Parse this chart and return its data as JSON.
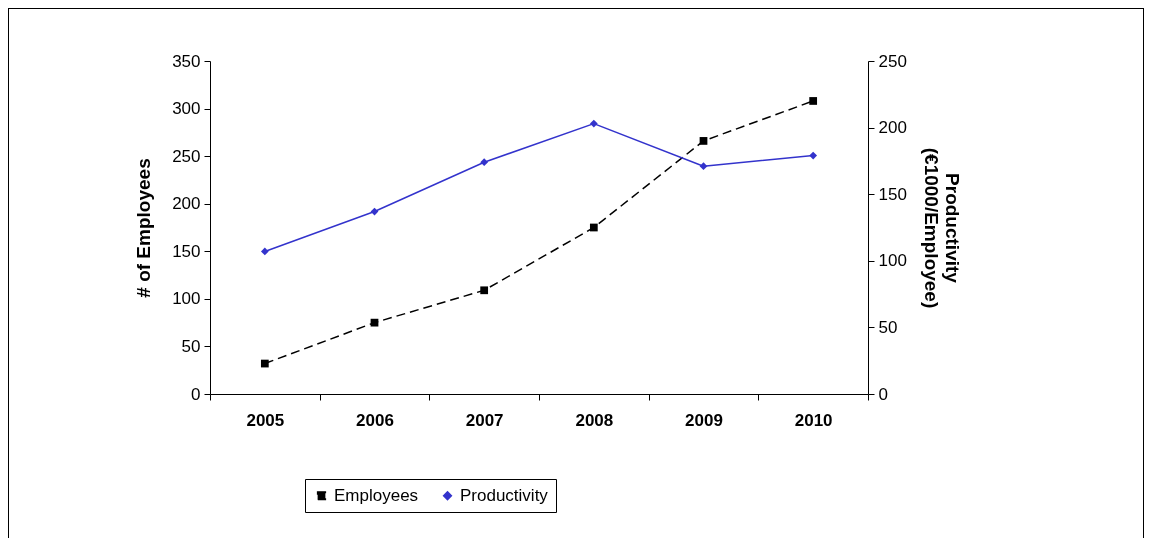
{
  "chart_data": {
    "type": "line",
    "categories": [
      "2005",
      "2006",
      "2007",
      "2008",
      "2009",
      "2010"
    ],
    "ylabel": "# of Employees",
    "y2label": "Productivity (€1000/Employee)",
    "ylim": [
      0,
      350
    ],
    "yticks": [
      0,
      50,
      100,
      150,
      200,
      250,
      300,
      350
    ],
    "y2lim": [
      0,
      250
    ],
    "y2ticks": [
      0,
      50,
      100,
      150,
      200,
      250
    ],
    "series": [
      {
        "name": "Employees",
        "color": "#000000",
        "marker": "square",
        "line_style": "dashed",
        "values": [
          32,
          75,
          109,
          175,
          266,
          308
        ]
      },
      {
        "name": "Productivity",
        "color": "#3333cc",
        "marker": "diamond",
        "line_style": "solid",
        "axis": "y2",
        "values": [
          107,
          137,
          174,
          203,
          171,
          179
        ]
      }
    ],
    "grid": false,
    "legend": "bottom"
  }
}
